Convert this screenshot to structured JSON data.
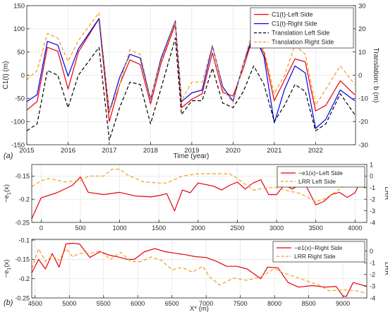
{
  "chart_data": [
    {
      "type": "line",
      "panel_label": "(a)",
      "xlabel": "Time (year)",
      "ylabel": "C1(t) (m)",
      "ylabel_right": "Translation: b (m)",
      "xlim": [
        2015,
        2022.97
      ],
      "ylim": [
        -150,
        150
      ],
      "ylim_right": [
        -30,
        30
      ],
      "x_ticks": [
        2015,
        2016,
        2017,
        2018,
        2019,
        2020,
        2021,
        2022
      ],
      "x_tick_labels": [
        "2015",
        "2016",
        "2017",
        "2018",
        "2019",
        "2020",
        "2021",
        "2022"
      ],
      "y_ticks": [
        -150,
        -100,
        -50,
        0,
        50,
        100,
        150
      ],
      "y_tick_labels": [
        "-150",
        "-100",
        "-50",
        "0",
        "50",
        "100",
        "150"
      ],
      "y_ticks_right": [
        -30,
        -20,
        -10,
        0,
        10,
        20,
        30
      ],
      "y_tick_labels_right": [
        "-30",
        "-20",
        "-10",
        "0",
        "10",
        "20",
        "30"
      ],
      "grid": true,
      "legend_position": "top-right",
      "series": [
        {
          "name": "C1(t)-Left Side",
          "color": "#e8000b",
          "dash": "solid",
          "axis": "left",
          "x": [
            2015,
            2015.25,
            2015.5,
            2015.75,
            2016,
            2016.25,
            2016.75,
            2017,
            2017.25,
            2017.5,
            2017.75,
            2018,
            2018.25,
            2018.6,
            2018.75,
            2019,
            2019.25,
            2019.5,
            2019.75,
            2020,
            2020.25,
            2020.5,
            2020.75,
            2021,
            2021.25,
            2021.5,
            2021.75,
            2022,
            2022.25,
            2022.6,
            2022.95
          ],
          "y": [
            -75,
            -57,
            60,
            52,
            -30,
            50,
            122,
            -100,
            -20,
            33,
            23,
            -62,
            24,
            110,
            -70,
            -52,
            -40,
            48,
            -37,
            -45,
            15,
            88,
            48,
            -55,
            -10,
            35,
            29,
            -77,
            -65,
            -12,
            -42
          ]
        },
        {
          "name": "C1(t)-Right Side",
          "color": "#0000e6",
          "dash": "solid",
          "axis": "left",
          "x": [
            2015,
            2015.25,
            2015.5,
            2015.75,
            2016,
            2016.25,
            2016.75,
            2017,
            2017.25,
            2017.5,
            2017.75,
            2018,
            2018.25,
            2018.6,
            2018.75,
            2019,
            2019.25,
            2019.5,
            2019.75,
            2020,
            2020.25,
            2020.5,
            2020.75,
            2021,
            2021.25,
            2021.5,
            2021.75,
            2022,
            2022.25,
            2022.6,
            2022.95
          ],
          "y": [
            -57,
            -42,
            73,
            65,
            -2,
            57,
            122,
            -80,
            -5,
            45,
            37,
            -52,
            35,
            117,
            -57,
            -38,
            -32,
            63,
            -25,
            -56,
            25,
            90,
            40,
            -103,
            -30,
            20,
            5,
            -115,
            -95,
            -32,
            -55
          ]
        },
        {
          "name": "Translation Left Side",
          "color": "#000000",
          "dash": "dashed",
          "axis": "right",
          "x": [
            2015,
            2015.25,
            2015.5,
            2015.75,
            2016,
            2016.25,
            2016.75,
            2017,
            2017.25,
            2017.5,
            2017.75,
            2018,
            2018.25,
            2018.6,
            2018.75,
            2019,
            2019.25,
            2019.5,
            2019.75,
            2020,
            2020.25,
            2020.5,
            2020.75,
            2021,
            2021.25,
            2021.5,
            2021.75,
            2022,
            2022.25,
            2022.6,
            2022.95
          ],
          "y": [
            -24,
            -21,
            2,
            0,
            -14,
            0,
            12,
            -28,
            -14,
            -3,
            -4,
            -21,
            -6,
            16,
            -17,
            -11,
            -11,
            3,
            -12,
            -14,
            -7,
            4,
            -4,
            -20,
            -13,
            -4,
            -7,
            -24,
            -21,
            -8,
            -17
          ]
        },
        {
          "name": "Translation Right Side",
          "color": "#f29e1f",
          "dash": "dashed",
          "axis": "right",
          "x": [
            2015,
            2015.25,
            2015.5,
            2015.75,
            2016,
            2016.25,
            2016.75,
            2017,
            2017.25,
            2017.5,
            2017.75,
            2018,
            2018.25,
            2018.6,
            2018.75,
            2019,
            2019.25,
            2019.5,
            2019.75,
            2020,
            2020.25,
            2020.5,
            2020.75,
            2021,
            2021.25,
            2021.5,
            2021.75,
            2022,
            2022.25,
            2022.6,
            2022.95
          ],
          "y": [
            -2,
            2,
            18,
            16,
            6,
            15,
            27,
            -16,
            -4,
            11,
            9,
            -10,
            6,
            23,
            -11,
            -3,
            -3,
            13,
            -6,
            -12,
            5,
            21,
            11,
            -8,
            0,
            13,
            9,
            -13,
            -6,
            4,
            -4
          ]
        }
      ]
    },
    {
      "type": "line",
      "panel_label": "",
      "xlabel": "",
      "ylabel": "−e",
      "ylabel_sub": "1",
      "ylabel_suffix": "(x)",
      "ylabel_right": "LRR",
      "xlim": [
        -120,
        4150
      ],
      "ylim": [
        -0.25,
        -0.125
      ],
      "ylim_right": [
        -4,
        1
      ],
      "x_ticks": [
        0,
        500,
        1000,
        1500,
        2000,
        2500,
        3000,
        3500,
        4000
      ],
      "x_tick_labels": [
        "0",
        "500",
        "1000",
        "1500",
        "2000",
        "2500",
        "3000",
        "3500",
        "4000"
      ],
      "y_ticks": [
        -0.25,
        -0.2,
        -0.15
      ],
      "y_tick_labels": [
        "-0.25",
        "-0.2",
        "-0.15"
      ],
      "y_ticks_right": [
        -4,
        -3,
        -2,
        -1,
        0,
        1
      ],
      "y_tick_labels_right": [
        "-4",
        "-3",
        "-2",
        "-1",
        "0",
        "1"
      ],
      "grid": true,
      "legend_position": "top-right",
      "series": [
        {
          "name": "−e1(x)−Left Side",
          "color": "#e8000b",
          "dash": "solid",
          "axis": "left",
          "x": [
            -120,
            0,
            200,
            400,
            500,
            600,
            800,
            1000,
            1200,
            1400,
            1500,
            1600,
            1700,
            1800,
            1900,
            2000,
            2200,
            2300,
            2400,
            2500,
            2600,
            2700,
            2800,
            2900,
            3000,
            3100,
            3200,
            3350,
            3500,
            3600,
            3700,
            3800,
            3900,
            4000,
            4100
          ],
          "y": [
            -0.242,
            -0.197,
            -0.186,
            -0.17,
            -0.152,
            -0.185,
            -0.19,
            -0.185,
            -0.193,
            -0.195,
            -0.192,
            -0.188,
            -0.225,
            -0.18,
            -0.186,
            -0.165,
            -0.172,
            -0.18,
            -0.17,
            -0.163,
            -0.178,
            -0.165,
            -0.158,
            -0.19,
            -0.19,
            -0.168,
            -0.178,
            -0.163,
            -0.212,
            -0.205,
            -0.19,
            -0.185,
            -0.196,
            -0.186,
            -0.15
          ]
        },
        {
          "name": "LRR Left Side",
          "color": "#f29e1f",
          "dash": "dashed",
          "axis": "right",
          "x": [
            -120,
            0,
            100,
            300,
            500,
            600,
            800,
            900,
            1000,
            1100,
            1300,
            1500,
            1600,
            1800,
            2000,
            2200,
            2400,
            2500,
            2700,
            2900,
            3000,
            3100,
            3300,
            3500,
            3600,
            3700,
            3900,
            4000,
            4150
          ],
          "y": [
            -0.9,
            -0.4,
            -0.2,
            -0.5,
            -0.4,
            0.0,
            0.0,
            0.6,
            0.6,
            0.1,
            -0.5,
            -0.6,
            -0.6,
            0.0,
            0.2,
            0.2,
            0.2,
            -0.2,
            -1.2,
            -1.0,
            -1.0,
            -1.2,
            -1.5,
            -2.2,
            -2.0,
            -1.6,
            -0.7,
            -0.9,
            -1.0
          ]
        }
      ]
    },
    {
      "type": "line",
      "panel_label": "(b)",
      "xlabel": "X* (m)",
      "ylabel": "−e",
      "ylabel_sub": "1",
      "ylabel_suffix": "(x)",
      "ylabel_right": "LRR",
      "xlim": [
        4450,
        9350
      ],
      "ylim": [
        -0.25,
        -0.098
      ],
      "ylim_right": [
        -4,
        1
      ],
      "x_ticks": [
        4500,
        5000,
        5500,
        6000,
        6500,
        7000,
        7500,
        8000,
        8500,
        9000
      ],
      "x_tick_labels": [
        "4500",
        "5000",
        "5500",
        "6000",
        "6500",
        "7000",
        "7500",
        "8000",
        "8500",
        "9000"
      ],
      "y_ticks": [
        -0.25,
        -0.2,
        -0.15,
        -0.1
      ],
      "y_tick_labels": [
        "-0.25",
        "-0.2",
        "-0.15",
        "-0.1"
      ],
      "y_ticks_right": [
        -4,
        -3,
        -2,
        -1,
        0
      ],
      "y_tick_labels_right": [
        "-4",
        "-3",
        "-2",
        "-1",
        "0"
      ],
      "grid": true,
      "legend_position": "top-right",
      "series": [
        {
          "name": "−e1(x)−Right Side",
          "color": "#e8000b",
          "dash": "solid",
          "axis": "left",
          "x": [
            4450,
            4550,
            4650,
            4750,
            4850,
            4950,
            5050,
            5150,
            5300,
            5450,
            5600,
            5700,
            5850,
            5950,
            6100,
            6250,
            6400,
            6550,
            6700,
            6850,
            7000,
            7150,
            7300,
            7450,
            7600,
            7800,
            7900,
            8050,
            8200,
            8350,
            8550,
            8750,
            8900,
            9000,
            9050,
            9150,
            9350
          ],
          "y": [
            -0.185,
            -0.15,
            -0.175,
            -0.135,
            -0.17,
            -0.11,
            -0.108,
            -0.11,
            -0.145,
            -0.13,
            -0.14,
            -0.143,
            -0.15,
            -0.15,
            -0.13,
            -0.122,
            -0.13,
            -0.134,
            -0.138,
            -0.143,
            -0.145,
            -0.155,
            -0.168,
            -0.168,
            -0.175,
            -0.2,
            -0.17,
            -0.172,
            -0.21,
            -0.222,
            -0.218,
            -0.222,
            -0.22,
            -0.245,
            -0.246,
            -0.21,
            -0.22
          ]
        },
        {
          "name": "LRR Right Side",
          "color": "#f29e1f",
          "dash": "dashed",
          "axis": "right",
          "x": [
            4450,
            4550,
            4650,
            4750,
            4850,
            4950,
            5050,
            5150,
            5300,
            5450,
            5600,
            5750,
            5900,
            6050,
            6200,
            6350,
            6500,
            6650,
            6800,
            6950,
            7050,
            7200,
            7400,
            7600,
            7800,
            8000,
            8100,
            8300,
            8500,
            8650,
            8800,
            9000,
            9200,
            9350
          ],
          "y": [
            -1.5,
            0.2,
            -0.9,
            -0.4,
            -0.8,
            0.2,
            -0.5,
            -0.2,
            -0.2,
            0.0,
            -0.7,
            -0.1,
            -0.9,
            -0.9,
            -0.5,
            -0.8,
            -1.6,
            -1.4,
            -1.8,
            -1.3,
            -2.2,
            -2.9,
            -2.3,
            -2.5,
            -2.2,
            -1.5,
            -1.8,
            -2.2,
            -2.6,
            -2.9,
            -3.4,
            -3.3,
            -3.4,
            -3.6
          ]
        }
      ]
    }
  ]
}
